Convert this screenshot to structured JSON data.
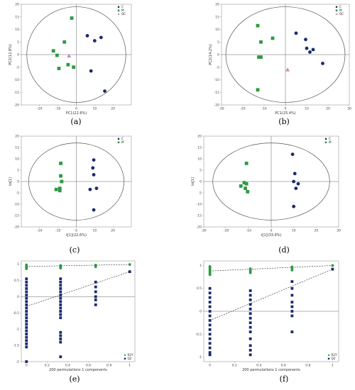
{
  "chart_data": [
    {
      "type": "scatter",
      "panel": "a",
      "caption": "(a)",
      "xlabel": "PC1(22.6%)",
      "ylabel": "PC2(12.8%)",
      "xlim": [
        -30,
        30
      ],
      "ylim": [
        -20,
        20
      ],
      "xticks": [
        -20,
        -10,
        0,
        10,
        20
      ],
      "yticks": [
        -20,
        -15,
        -10,
        -5,
        0,
        5,
        10,
        15,
        20
      ],
      "ellipse": {
        "rx": 27,
        "ry": 19
      },
      "legend": [
        "C",
        "M",
        "QC"
      ],
      "legend_position": "top-right",
      "series": [
        {
          "name": "C",
          "marker": "circle",
          "color": "#1a2a6c",
          "points": [
            [
              6,
              7.5
            ],
            [
              10,
              5.5
            ],
            [
              13.5,
              6.8
            ],
            [
              8,
              -6.5
            ],
            [
              15.5,
              -14.5
            ]
          ]
        },
        {
          "name": "M",
          "marker": "square",
          "color": "#2e9a44",
          "points": [
            [
              -2.5,
              14.5
            ],
            [
              -6.5,
              5
            ],
            [
              -12.5,
              1.5
            ],
            [
              -10.5,
              -0.3
            ],
            [
              -4.5,
              -4
            ],
            [
              -9.5,
              -5.5
            ],
            [
              -1.5,
              -5
            ]
          ]
        },
        {
          "name": "QC",
          "marker": "triangle",
          "color": "#c98fc7",
          "points": [
            [
              -4,
              -0.5
            ]
          ]
        }
      ]
    },
    {
      "type": "scatter",
      "panel": "b",
      "caption": "(b)",
      "xlabel": "PC1(25.4%)",
      "ylabel": "PC2(14.2%)",
      "xlim": [
        -30,
        30
      ],
      "ylim": [
        -20,
        20
      ],
      "xticks": [
        -30,
        -20,
        -10,
        0,
        10,
        20,
        30
      ],
      "yticks": [
        -20,
        -15,
        -10,
        -5,
        0,
        5,
        10,
        15,
        20
      ],
      "ellipse": {
        "rx": 28,
        "ry": 19
      },
      "legend": [
        "C",
        "M",
        "QC"
      ],
      "legend_position": "top-right",
      "series": [
        {
          "name": "C",
          "marker": "circle",
          "color": "#1a2a6c",
          "points": [
            [
              5,
              8.5
            ],
            [
              9.5,
              6
            ],
            [
              10,
              2.5
            ],
            [
              11.5,
              1
            ],
            [
              13,
              2
            ],
            [
              17.5,
              -3.5
            ]
          ]
        },
        {
          "name": "M",
          "marker": "square",
          "color": "#2e9a44",
          "points": [
            [
              -13,
              11.5
            ],
            [
              -11.5,
              5
            ],
            [
              -6,
              6.5
            ],
            [
              -12.5,
              -1
            ],
            [
              -11.5,
              -1
            ],
            [
              -13,
              -14
            ]
          ]
        },
        {
          "name": "QC",
          "marker": "triangle",
          "color": "#c98fc7",
          "points": [
            [
              1,
              -6
            ]
          ]
        }
      ]
    },
    {
      "type": "scatter",
      "panel": "c",
      "caption": "(c)",
      "xlabel": "t[1](22.6%)",
      "ylabel": "to[1]",
      "xlim": [
        -30,
        30
      ],
      "ylim": [
        -20,
        20
      ],
      "xticks": [
        -20,
        -10,
        0,
        10,
        20
      ],
      "yticks": [
        -20,
        -15,
        -10,
        -5,
        0,
        5,
        10,
        15,
        20
      ],
      "ellipse": {
        "rx": 26,
        "ry": 17
      },
      "legend": [
        "C",
        "M"
      ],
      "legend_position": "top-right",
      "series": [
        {
          "name": "C",
          "marker": "circle",
          "color": "#1a2a6c",
          "points": [
            [
              9.5,
              9.5
            ],
            [
              9,
              6
            ],
            [
              9.5,
              3
            ],
            [
              7.5,
              -3.5
            ],
            [
              11,
              -3
            ],
            [
              9.5,
              -12.5
            ]
          ]
        },
        {
          "name": "M",
          "marker": "square",
          "color": "#2e9a44",
          "points": [
            [
              -8.5,
              8
            ],
            [
              -8.5,
              2.5
            ],
            [
              -8,
              0
            ],
            [
              -9,
              -3
            ],
            [
              -11,
              -3.5
            ],
            [
              -9,
              -4
            ]
          ]
        }
      ]
    },
    {
      "type": "scatter",
      "panel": "d",
      "caption": "(d)",
      "xlabel": "t[1](33.9%)",
      "ylabel": "to[1]",
      "xlim": [
        -30,
        30
      ],
      "ylim": [
        -20,
        20
      ],
      "xticks": [
        -30,
        -20,
        -10,
        0,
        10,
        20,
        30
      ],
      "yticks": [
        -20,
        -15,
        -10,
        -5,
        0,
        5,
        10,
        15,
        20
      ],
      "ellipse": {
        "rx": 26,
        "ry": 17
      },
      "legend": [
        "C",
        "M"
      ],
      "legend_position": "top-right",
      "series": [
        {
          "name": "C",
          "marker": "circle",
          "color": "#1a2a6c",
          "points": [
            [
              9.5,
              12
            ],
            [
              10.5,
              3.5
            ],
            [
              10,
              0
            ],
            [
              12,
              -1
            ],
            [
              11,
              -3
            ],
            [
              10,
              -11
            ]
          ]
        },
        {
          "name": "M",
          "marker": "square",
          "color": "#2e9a44",
          "points": [
            [
              -11,
              8
            ],
            [
              -12,
              -0.5
            ],
            [
              -11,
              -1
            ],
            [
              -11.5,
              -3
            ],
            [
              -10.5,
              -4.5
            ],
            [
              -13.5,
              -2
            ]
          ]
        }
      ]
    },
    {
      "type": "permutation",
      "panel": "e",
      "caption": "(e)",
      "xlabel": "200 permutations 1 components",
      "xlim": [
        -0.05,
        1.05
      ],
      "ylim": [
        -2.0,
        1.1
      ],
      "xticks": [
        0.0,
        0.2,
        0.4,
        0.6,
        0.8,
        1.0
      ],
      "yticks": [
        -2.0,
        -1.5,
        -1.0,
        -0.5,
        0.0,
        0.5,
        1.0
      ],
      "legend": [
        "R2Y",
        "Q2"
      ],
      "legend_position": "bottom-right",
      "r2y_line": [
        [
          0,
          0.93
        ],
        [
          1.0,
          0.99
        ]
      ],
      "q2_line": [
        [
          0,
          -0.3
        ],
        [
          1.0,
          0.77
        ]
      ],
      "series": [
        {
          "name": "R2Y",
          "marker": "circle",
          "color": "#2e9a44",
          "points": [
            [
              0.0,
              0.86
            ],
            [
              0.0,
              0.88
            ],
            [
              0.0,
              0.9
            ],
            [
              0.0,
              0.92
            ],
            [
              0.0,
              0.94
            ],
            [
              0.0,
              0.96
            ],
            [
              0.0,
              0.98
            ],
            [
              0.33,
              0.88
            ],
            [
              0.33,
              0.9
            ],
            [
              0.33,
              0.92
            ],
            [
              0.33,
              0.94
            ],
            [
              0.33,
              0.96
            ],
            [
              0.67,
              0.92
            ],
            [
              0.67,
              0.95
            ],
            [
              0.67,
              0.97
            ],
            [
              1.0,
              0.99
            ]
          ]
        },
        {
          "name": "Q2",
          "marker": "square",
          "color": "#1a2a6c",
          "points": [
            [
              0.0,
              0.55
            ],
            [
              0.0,
              0.45
            ],
            [
              0.0,
              0.35
            ],
            [
              0.0,
              0.25
            ],
            [
              0.0,
              0.15
            ],
            [
              0.0,
              0.05
            ],
            [
              0.0,
              -0.05
            ],
            [
              0.0,
              -0.15
            ],
            [
              0.0,
              -0.25
            ],
            [
              0.0,
              -0.35
            ],
            [
              0.0,
              -0.45
            ],
            [
              0.0,
              -0.55
            ],
            [
              0.0,
              -0.65
            ],
            [
              0.0,
              -0.75
            ],
            [
              0.0,
              -0.85
            ],
            [
              0.0,
              -0.95
            ],
            [
              0.0,
              -1.05
            ],
            [
              0.0,
              -1.15
            ],
            [
              0.0,
              -1.25
            ],
            [
              0.0,
              -1.35
            ],
            [
              0.0,
              -1.45
            ],
            [
              0.0,
              -1.55
            ],
            [
              0.0,
              -2.0
            ],
            [
              0.33,
              0.55
            ],
            [
              0.33,
              0.45
            ],
            [
              0.33,
              0.35
            ],
            [
              0.33,
              0.25
            ],
            [
              0.33,
              0.15
            ],
            [
              0.33,
              0.05
            ],
            [
              0.33,
              -0.05
            ],
            [
              0.33,
              -0.15
            ],
            [
              0.33,
              -0.25
            ],
            [
              0.33,
              -0.35
            ],
            [
              0.33,
              -0.45
            ],
            [
              0.33,
              -0.55
            ],
            [
              0.33,
              -0.65
            ],
            [
              0.33,
              -1.1
            ],
            [
              0.33,
              -1.2
            ],
            [
              0.33,
              -1.3
            ],
            [
              0.33,
              -1.4
            ],
            [
              0.33,
              -1.85
            ],
            [
              0.67,
              0.45
            ],
            [
              0.67,
              0.3
            ],
            [
              0.67,
              0.15
            ],
            [
              0.67,
              0.0
            ],
            [
              0.67,
              -0.1
            ],
            [
              0.67,
              -0.25
            ],
            [
              1.0,
              0.77
            ]
          ]
        }
      ]
    },
    {
      "type": "permutation",
      "panel": "f",
      "caption": "(f)",
      "xlabel": "200 permutations 1 components",
      "xlim": [
        -0.05,
        1.05
      ],
      "ylim": [
        -1.1,
        1.1
      ],
      "xticks": [
        0.0,
        0.2,
        0.4,
        0.6,
        0.8,
        1.0
      ],
      "yticks": [
        -1.0,
        -0.5,
        0.0,
        0.5,
        1.0
      ],
      "legend": [
        "R2Y",
        "Q2"
      ],
      "legend_position": "bottom-right",
      "r2y_line": [
        [
          0,
          0.88
        ],
        [
          1.0,
          1.0
        ]
      ],
      "q2_line": [
        [
          0,
          -0.2
        ],
        [
          1.0,
          0.92
        ]
      ],
      "series": [
        {
          "name": "R2Y",
          "marker": "circle",
          "color": "#2e9a44",
          "points": [
            [
              0.0,
              0.8
            ],
            [
              0.0,
              0.83
            ],
            [
              0.0,
              0.86
            ],
            [
              0.0,
              0.89
            ],
            [
              0.0,
              0.92
            ],
            [
              0.0,
              0.95
            ],
            [
              0.0,
              0.98
            ],
            [
              0.33,
              0.84
            ],
            [
              0.33,
              0.87
            ],
            [
              0.33,
              0.9
            ],
            [
              0.33,
              0.93
            ],
            [
              0.67,
              0.9
            ],
            [
              0.67,
              0.94
            ],
            [
              0.67,
              0.97
            ],
            [
              1.0,
              1.0
            ]
          ]
        },
        {
          "name": "Q2",
          "marker": "square",
          "color": "#1a2a6c",
          "points": [
            [
              0.0,
              0.5
            ],
            [
              0.0,
              0.4
            ],
            [
              0.0,
              0.3
            ],
            [
              0.0,
              0.2
            ],
            [
              0.0,
              0.1
            ],
            [
              0.0,
              0.0
            ],
            [
              0.0,
              -0.1
            ],
            [
              0.0,
              -0.2
            ],
            [
              0.0,
              -0.3
            ],
            [
              0.0,
              -0.4
            ],
            [
              0.0,
              -0.5
            ],
            [
              0.0,
              -0.6
            ],
            [
              0.0,
              -0.7
            ],
            [
              0.0,
              -0.8
            ],
            [
              0.0,
              -0.9
            ],
            [
              0.0,
              -0.95
            ],
            [
              0.33,
              0.45
            ],
            [
              0.33,
              0.35
            ],
            [
              0.33,
              0.25
            ],
            [
              0.33,
              0.15
            ],
            [
              0.33,
              0.05
            ],
            [
              0.33,
              -0.05
            ],
            [
              0.33,
              -0.15
            ],
            [
              0.33,
              -0.25
            ],
            [
              0.33,
              -0.35
            ],
            [
              0.33,
              -0.45
            ],
            [
              0.33,
              -0.6
            ],
            [
              0.33,
              -0.75
            ],
            [
              0.33,
              -0.85
            ],
            [
              0.33,
              -0.95
            ],
            [
              0.67,
              0.65
            ],
            [
              0.67,
              0.5
            ],
            [
              0.67,
              0.35
            ],
            [
              0.67,
              0.2
            ],
            [
              0.67,
              0.1
            ],
            [
              0.67,
              0.0
            ],
            [
              0.67,
              -0.1
            ],
            [
              0.67,
              -0.45
            ],
            [
              1.0,
              0.92
            ]
          ]
        }
      ]
    }
  ]
}
